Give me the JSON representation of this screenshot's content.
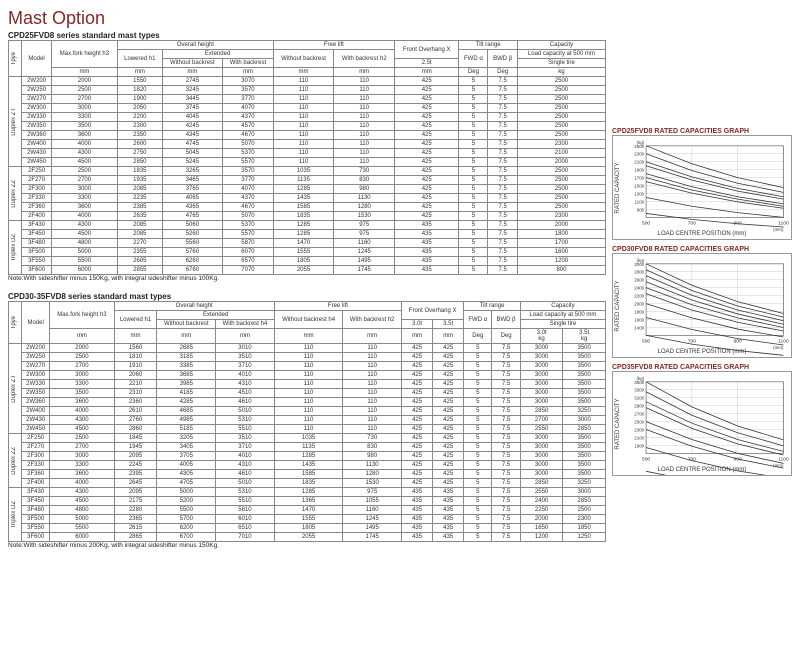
{
  "page_title": "Mast Option",
  "table1": {
    "subtitle": "CPD25FVD8 series standard mast types",
    "note": "Note:With sideshifter minus 150Kg, with integral sideshifter minus 100Kg.",
    "headers": {
      "type": "Tpye",
      "model": "Model",
      "maxfork": "Max.fork height h3",
      "overall": "Overall height",
      "lowered": "Lowered h1",
      "extended": "Extended",
      "wo_br": "Without backrest",
      "w_br": "With backrest",
      "freelift": "Free lift",
      "wo_br_h4": "Without backrest",
      "w_br_h2": "With backrest h2",
      "overhang": "Front  Overhang    X",
      "tilt": "Tilt range",
      "fwd": "FWD  α",
      "bwd": "BWD  β",
      "capacity": "Capacity",
      "load500": "Load capacity at 500 mm",
      "singletire": "Single tire",
      "deg": "Deg",
      "mm": "mm",
      "kg": "kg",
      "t25": "2.5t"
    },
    "groups": [
      {
        "name": "Duplex ZT",
        "rows": [
          {
            "m": "2W200",
            "h3": "2000",
            "h1": "1550",
            "ewo": "2745",
            "ewb": "3070",
            "fwo": "110",
            "fwb": "110",
            "x": "425",
            "fwd": "5",
            "bwd": "7.5",
            "cap": "2500"
          },
          {
            "m": "2W250",
            "h3": "2500",
            "h1": "1820",
            "ewo": "3245",
            "ewb": "3570",
            "fwo": "110",
            "fwb": "110",
            "x": "425",
            "fwd": "5",
            "bwd": "7.5",
            "cap": "2500"
          },
          {
            "m": "2W270",
            "h3": "2700",
            "h1": "1900",
            "ewo": "3445",
            "ewb": "3770",
            "fwo": "110",
            "fwb": "110",
            "x": "425",
            "fwd": "5",
            "bwd": "7.5",
            "cap": "2500"
          },
          {
            "m": "2W300",
            "h3": "3000",
            "h1": "2050",
            "ewo": "3745",
            "ewb": "4070",
            "fwo": "110",
            "fwb": "110",
            "x": "425",
            "fwd": "5",
            "bwd": "7.5",
            "cap": "2500"
          },
          {
            "m": "2W330",
            "h3": "3300",
            "h1": "2200",
            "ewo": "4045",
            "ewb": "4370",
            "fwo": "110",
            "fwb": "110",
            "x": "425",
            "fwd": "5",
            "bwd": "7.5",
            "cap": "2500"
          },
          {
            "m": "2W350",
            "h3": "3500",
            "h1": "2300",
            "ewo": "4245",
            "ewb": "4570",
            "fwo": "110",
            "fwb": "110",
            "x": "425",
            "fwd": "5",
            "bwd": "7.5",
            "cap": "2500"
          },
          {
            "m": "2W360",
            "h3": "3600",
            "h1": "2350",
            "ewo": "4345",
            "ewb": "4670",
            "fwo": "110",
            "fwb": "110",
            "x": "425",
            "fwd": "5",
            "bwd": "7.5",
            "cap": "2500"
          },
          {
            "m": "2W400",
            "h3": "4000",
            "h1": "2600",
            "ewo": "4745",
            "ewb": "5070",
            "fwo": "110",
            "fwb": "110",
            "x": "425",
            "fwd": "5",
            "bwd": "7.5",
            "cap": "2300"
          },
          {
            "m": "2W430",
            "h3": "4300",
            "h1": "2750",
            "ewo": "5045",
            "ewb": "5370",
            "fwo": "110",
            "fwb": "110",
            "x": "425",
            "fwd": "5",
            "bwd": "7.5",
            "cap": "2100"
          },
          {
            "m": "2W450",
            "h3": "4500",
            "h1": "2850",
            "ewo": "5245",
            "ewb": "5570",
            "fwo": "110",
            "fwb": "110",
            "x": "425",
            "fwd": "5",
            "bwd": "7.5",
            "cap": "2000"
          }
        ]
      },
      {
        "name": "Duplex ZZ",
        "rows": [
          {
            "m": "2F250",
            "h3": "2500",
            "h1": "1835",
            "ewo": "3265",
            "ewb": "3570",
            "fwo": "1035",
            "fwb": "730",
            "x": "425",
            "fwd": "5",
            "bwd": "7.5",
            "cap": "2500"
          },
          {
            "m": "2F270",
            "h3": "2700",
            "h1": "1935",
            "ewo": "3465",
            "ewb": "3770",
            "fwo": "1135",
            "fwb": "830",
            "x": "425",
            "fwd": "5",
            "bwd": "7.5",
            "cap": "2500"
          },
          {
            "m": "2F300",
            "h3": "3000",
            "h1": "2085",
            "ewo": "3765",
            "ewb": "4070",
            "fwo": "1285",
            "fwb": "980",
            "x": "425",
            "fwd": "5",
            "bwd": "7.5",
            "cap": "2500"
          },
          {
            "m": "2F330",
            "h3": "3300",
            "h1": "2235",
            "ewo": "4065",
            "ewb": "4370",
            "fwo": "1435",
            "fwb": "1130",
            "x": "425",
            "fwd": "5",
            "bwd": "7.5",
            "cap": "2500"
          },
          {
            "m": "2F360",
            "h3": "3600",
            "h1": "2385",
            "ewo": "4365",
            "ewb": "4670",
            "fwo": "1585",
            "fwb": "1280",
            "x": "425",
            "fwd": "5",
            "bwd": "7.5",
            "cap": "2500"
          },
          {
            "m": "2F400",
            "h3": "4000",
            "h1": "2635",
            "ewo": "4765",
            "ewb": "5070",
            "fwo": "1835",
            "fwb": "1530",
            "x": "425",
            "fwd": "5",
            "bwd": "7.5",
            "cap": "2300"
          }
        ]
      },
      {
        "name": "Triplex DZ",
        "rows": [
          {
            "m": "3F430",
            "h3": "4300",
            "h1": "2085",
            "ewo": "5060",
            "ewb": "5370",
            "fwo": "1285",
            "fwb": "975",
            "x": "435",
            "fwd": "5",
            "bwd": "7.5",
            "cap": "2000"
          },
          {
            "m": "3F450",
            "h3": "4500",
            "h1": "2085",
            "ewo": "5260",
            "ewb": "5570",
            "fwo": "1285",
            "fwb": "975",
            "x": "435",
            "fwd": "5",
            "bwd": "7.5",
            "cap": "1800"
          },
          {
            "m": "3F480",
            "h3": "4800",
            "h1": "2270",
            "ewo": "5560",
            "ewb": "5870",
            "fwo": "1470",
            "fwb": "1160",
            "x": "435",
            "fwd": "5",
            "bwd": "7.5",
            "cap": "1700"
          },
          {
            "m": "3F500",
            "h3": "5000",
            "h1": "2355",
            "ewo": "5760",
            "ewb": "6070",
            "fwo": "1555",
            "fwb": "1245",
            "x": "435",
            "fwd": "5",
            "bwd": "7.5",
            "cap": "1600"
          },
          {
            "m": "3F550",
            "h3": "5500",
            "h1": "2605",
            "ewo": "6260",
            "ewb": "6570",
            "fwo": "1805",
            "fwb": "1495",
            "x": "435",
            "fwd": "5",
            "bwd": "7.5",
            "cap": "1200"
          },
          {
            "m": "3F600",
            "h3": "6000",
            "h1": "2855",
            "ewo": "6760",
            "ewb": "7070",
            "fwo": "2055",
            "fwb": "1745",
            "x": "435",
            "fwd": "5",
            "bwd": "7.5",
            "cap": "800"
          }
        ]
      }
    ]
  },
  "table2": {
    "subtitle": "CPD30-35FVD8 series standard mast types",
    "note": "Note:With sideshifter minus 200Kg, with integral sideshifter minus 150Kg.",
    "headers": {
      "t30": "3.0t",
      "t35": "3.5t"
    },
    "groups": [
      {
        "name": "Duplex ZT",
        "rows": [
          {
            "m": "2W200",
            "h3": "2000",
            "h1": "1560",
            "ewo": "2685",
            "ewb": "3010",
            "fwo": "110",
            "fwb": "110",
            "x3": "425",
            "x35": "425",
            "fwd": "5",
            "bwd": "7.5",
            "c3": "3000",
            "c35": "3500"
          },
          {
            "m": "2W250",
            "h3": "2500",
            "h1": "1810",
            "ewo": "3185",
            "ewb": "3510",
            "fwo": "110",
            "fwb": "110",
            "x3": "425",
            "x35": "425",
            "fwd": "5",
            "bwd": "7.5",
            "c3": "3000",
            "c35": "3500"
          },
          {
            "m": "2W270",
            "h3": "2700",
            "h1": "1910",
            "ewo": "3385",
            "ewb": "3710",
            "fwo": "110",
            "fwb": "110",
            "x3": "425",
            "x35": "425",
            "fwd": "5",
            "bwd": "7.5",
            "c3": "3000",
            "c35": "3500"
          },
          {
            "m": "2W300",
            "h3": "3000",
            "h1": "2060",
            "ewo": "3685",
            "ewb": "4010",
            "fwo": "110",
            "fwb": "110",
            "x3": "425",
            "x35": "425",
            "fwd": "5",
            "bwd": "7.5",
            "c3": "3000",
            "c35": "3500"
          },
          {
            "m": "2W330",
            "h3": "3300",
            "h1": "2210",
            "ewo": "3985",
            "ewb": "4310",
            "fwo": "110",
            "fwb": "110",
            "x3": "425",
            "x35": "425",
            "fwd": "5",
            "bwd": "7.5",
            "c3": "3000",
            "c35": "3500"
          },
          {
            "m": "2W350",
            "h3": "3500",
            "h1": "2310",
            "ewo": "4185",
            "ewb": "4510",
            "fwo": "110",
            "fwb": "110",
            "x3": "425",
            "x35": "425",
            "fwd": "5",
            "bwd": "7.5",
            "c3": "3000",
            "c35": "3500"
          },
          {
            "m": "2W360",
            "h3": "3600",
            "h1": "2360",
            "ewo": "4285",
            "ewb": "4610",
            "fwo": "110",
            "fwb": "110",
            "x3": "425",
            "x35": "425",
            "fwd": "5",
            "bwd": "7.5",
            "c3": "3000",
            "c35": "3500"
          },
          {
            "m": "2W400",
            "h3": "4000",
            "h1": "2610",
            "ewo": "4685",
            "ewb": "5010",
            "fwo": "110",
            "fwb": "110",
            "x3": "425",
            "x35": "425",
            "fwd": "5",
            "bwd": "7.5",
            "c3": "2850",
            "c35": "3250"
          },
          {
            "m": "2W430",
            "h3": "4300",
            "h1": "2760",
            "ewo": "4985",
            "ewb": "5310",
            "fwo": "110",
            "fwb": "110",
            "x3": "425",
            "x35": "425",
            "fwd": "5",
            "bwd": "7.5",
            "c3": "2700",
            "c35": "3000"
          },
          {
            "m": "2W450",
            "h3": "4500",
            "h1": "2860",
            "ewo": "5185",
            "ewb": "5510",
            "fwo": "110",
            "fwb": "110",
            "x3": "425",
            "x35": "425",
            "fwd": "5",
            "bwd": "7.5",
            "c3": "2550",
            "c35": "2850"
          }
        ]
      },
      {
        "name": "Duplex ZZ",
        "rows": [
          {
            "m": "2F250",
            "h3": "2500",
            "h1": "1845",
            "ewo": "3205",
            "ewb": "3510",
            "fwo": "1035",
            "fwb": "730",
            "x3": "425",
            "x35": "425",
            "fwd": "5",
            "bwd": "7.5",
            "c3": "3000",
            "c35": "3500"
          },
          {
            "m": "2F270",
            "h3": "2700",
            "h1": "1945",
            "ewo": "3405",
            "ewb": "3710",
            "fwo": "1135",
            "fwb": "830",
            "x3": "425",
            "x35": "425",
            "fwd": "5",
            "bwd": "7.5",
            "c3": "3000",
            "c35": "3500"
          },
          {
            "m": "2F300",
            "h3": "3000",
            "h1": "2095",
            "ewo": "3705",
            "ewb": "4010",
            "fwo": "1285",
            "fwb": "980",
            "x3": "425",
            "x35": "425",
            "fwd": "5",
            "bwd": "7.5",
            "c3": "3000",
            "c35": "3500"
          },
          {
            "m": "2F330",
            "h3": "3300",
            "h1": "2245",
            "ewo": "4005",
            "ewb": "4310",
            "fwo": "1435",
            "fwb": "1130",
            "x3": "425",
            "x35": "425",
            "fwd": "5",
            "bwd": "7.5",
            "c3": "3000",
            "c35": "3500"
          },
          {
            "m": "2F360",
            "h3": "3600",
            "h1": "2395",
            "ewo": "4305",
            "ewb": "4610",
            "fwo": "1585",
            "fwb": "1280",
            "x3": "425",
            "x35": "425",
            "fwd": "5",
            "bwd": "7.5",
            "c3": "3000",
            "c35": "3500"
          },
          {
            "m": "2F400",
            "h3": "4000",
            "h1": "2645",
            "ewo": "4705",
            "ewb": "5010",
            "fwo": "1835",
            "fwb": "1530",
            "x3": "425",
            "x35": "425",
            "fwd": "5",
            "bwd": "7.5",
            "c3": "2850",
            "c35": "3250"
          }
        ]
      },
      {
        "name": "Triplex DZ",
        "rows": [
          {
            "m": "3F430",
            "h3": "4300",
            "h1": "2095",
            "ewo": "5000",
            "ewb": "5310",
            "fwo": "1285",
            "fwb": "975",
            "x3": "435",
            "x35": "435",
            "fwd": "5",
            "bwd": "7.5",
            "c3": "2550",
            "c35": "3000"
          },
          {
            "m": "3F450",
            "h3": "4500",
            "h1": "2175",
            "ewo": "5200",
            "ewb": "5510",
            "fwo": "1365",
            "fwb": "1055",
            "x3": "435",
            "x35": "435",
            "fwd": "5",
            "bwd": "7.5",
            "c3": "2400",
            "c35": "2850"
          },
          {
            "m": "3F480",
            "h3": "4800",
            "h1": "2280",
            "ewo": "5500",
            "ewb": "5810",
            "fwo": "1470",
            "fwb": "1160",
            "x3": "435",
            "x35": "435",
            "fwd": "5",
            "bwd": "7.5",
            "c3": "2250",
            "c35": "2500"
          },
          {
            "m": "3F500",
            "h3": "5000",
            "h1": "2365",
            "ewo": "5700",
            "ewb": "6010",
            "fwo": "1555",
            "fwb": "1245",
            "x3": "435",
            "x35": "435",
            "fwd": "5",
            "bwd": "7.5",
            "c3": "2000",
            "c35": "2300"
          },
          {
            "m": "3F550",
            "h3": "5500",
            "h1": "2615",
            "ewo": "6200",
            "ewb": "6510",
            "fwo": "1805",
            "fwb": "1495",
            "x3": "435",
            "x35": "435",
            "fwd": "5",
            "bwd": "7.5",
            "c3": "1650",
            "c35": "1850"
          },
          {
            "m": "3F600",
            "h3": "6000",
            "h1": "2865",
            "ewo": "6700",
            "ewb": "7010",
            "fwo": "2055",
            "fwb": "1745",
            "x3": "435",
            "x35": "435",
            "fwd": "5",
            "bwd": "7.5",
            "c3": "1200",
            "c35": "1250"
          }
        ]
      }
    ]
  },
  "charts": {
    "ylabel": "RATED CAPACITY",
    "xlabel": "LOAD CENTRE POSITION (mm)",
    "xticks": [
      500,
      700,
      900,
      1100
    ],
    "c1": {
      "title": "CPD25FVD8 RATED CAPACITIES GRAPH",
      "yticks": [
        "(kg)",
        "2500",
        "2300",
        "2100",
        "1900",
        "1700",
        "1500",
        "1300",
        "1100",
        "900"
      ],
      "series": [
        [
          2500,
          2050,
          1700,
          1450
        ],
        [
          2300,
          1880,
          1560,
          1330
        ],
        [
          2100,
          1720,
          1430,
          1220
        ],
        [
          2000,
          1640,
          1360,
          1160
        ],
        [
          1800,
          1470,
          1220,
          1040
        ],
        [
          1700,
          1390,
          1160,
          980
        ],
        [
          1600,
          1310,
          1090,
          930
        ],
        [
          1200,
          980,
          820,
          700
        ],
        [
          800,
          650,
          540,
          460
        ]
      ]
    },
    "c2": {
      "title": "CPD30FVD8 RATED CAPACITIES GRAPH",
      "yticks": [
        "(kg)",
        "3000",
        "2800",
        "2600",
        "2400",
        "2200",
        "2000",
        "1800",
        "1600",
        "1400"
      ],
      "series": [
        [
          3000,
          2460,
          2050,
          1750
        ],
        [
          2850,
          2330,
          1940,
          1660
        ],
        [
          2700,
          2210,
          1840,
          1570
        ],
        [
          2550,
          2090,
          1740,
          1480
        ],
        [
          2400,
          1970,
          1640,
          1400
        ],
        [
          2250,
          1840,
          1530,
          1310
        ],
        [
          2000,
          1640,
          1360,
          1160
        ],
        [
          1650,
          1350,
          1120,
          960
        ],
        [
          1200,
          980,
          820,
          700
        ]
      ]
    },
    "c3": {
      "title": "CPD35FVD8 RATED CAPACITIES GRAPH",
      "yticks": [
        "(kg)",
        "3500",
        "3300",
        "3100",
        "2900",
        "2700",
        "2500",
        "2300",
        "2100",
        "1900"
      ],
      "series": [
        [
          3500,
          2870,
          2390,
          2040
        ],
        [
          3250,
          2660,
          2220,
          1890
        ],
        [
          3000,
          2460,
          2050,
          1750
        ],
        [
          2850,
          2330,
          1940,
          1660
        ],
        [
          2500,
          2050,
          1700,
          1450
        ],
        [
          2300,
          1880,
          1560,
          1330
        ],
        [
          1850,
          1520,
          1260,
          1080
        ],
        [
          1250,
          1020,
          850,
          730
        ]
      ]
    }
  },
  "style": {
    "accent": "#852828",
    "grid": "#cccccc",
    "linecolor": "#333333"
  }
}
